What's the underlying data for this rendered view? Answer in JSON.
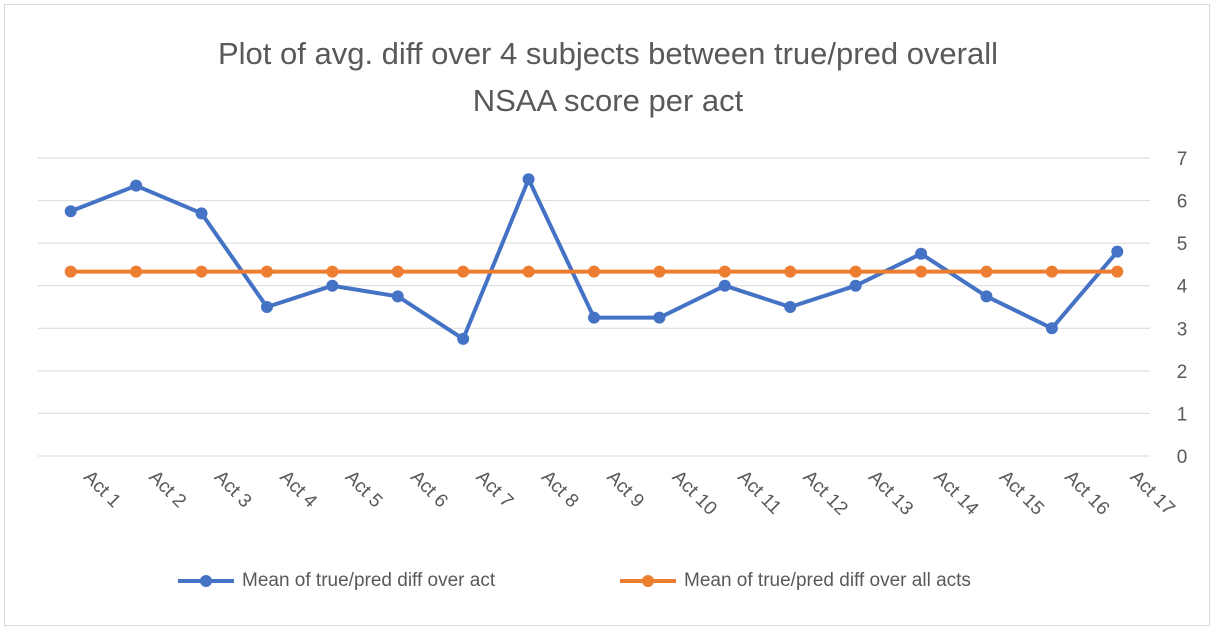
{
  "chart_data": {
    "type": "line",
    "title_lines": [
      "Plot of avg. diff over 4 subjects between true/pred overall",
      "NSAA score per act"
    ],
    "xlabel": "",
    "ylabel": "",
    "categories": [
      "Act 1",
      "Act 2",
      "Act 3",
      "Act 4",
      "Act 5",
      "Act 6",
      "Act 7",
      "Act 8",
      "Act 9",
      "Act 10",
      "Act 11",
      "Act 12",
      "Act 13",
      "Act 14",
      "Act 15",
      "Act 16",
      "Act 17"
    ],
    "ylim": [
      0,
      7
    ],
    "yticks": [
      0,
      1,
      2,
      3,
      4,
      5,
      6,
      7
    ],
    "y_axis_side": "right",
    "grid": true,
    "legend_position": "bottom",
    "series": [
      {
        "name": "Mean of true/pred diff over act",
        "color": "#4472c4",
        "values": [
          5.75,
          6.35,
          5.7,
          3.5,
          4.0,
          3.75,
          2.75,
          6.5,
          3.25,
          3.25,
          4.0,
          3.5,
          4.0,
          4.75,
          3.75,
          3.0,
          4.8
        ]
      },
      {
        "name": "Mean of true/pred diff over all acts",
        "color": "#ed7d31",
        "values": [
          4.33,
          4.33,
          4.33,
          4.33,
          4.33,
          4.33,
          4.33,
          4.33,
          4.33,
          4.33,
          4.33,
          4.33,
          4.33,
          4.33,
          4.33,
          4.33,
          4.33
        ]
      }
    ]
  }
}
